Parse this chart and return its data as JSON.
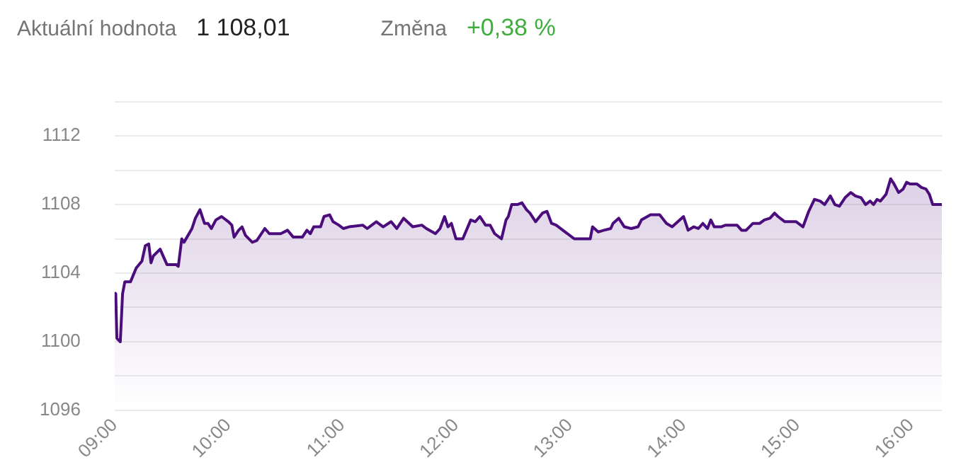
{
  "chart_data": {
    "type": "area",
    "annotations": [
      "Aktuální hodnota",
      "1 108,01",
      "Změna",
      "+0,38 %"
    ],
    "x": [
      9.0,
      9.01,
      9.01,
      9.02,
      9.05,
      9.07,
      9.09,
      9.14,
      9.19,
      9.24,
      9.27,
      9.3,
      9.32,
      9.34,
      9.4,
      9.46,
      9.54,
      9.56,
      9.59,
      9.61,
      9.68,
      9.71,
      9.75,
      9.79,
      9.82,
      9.85,
      9.89,
      9.94,
      10.0,
      10.03,
      10.05,
      10.09,
      10.12,
      10.15,
      10.21,
      10.25,
      10.32,
      10.36,
      10.46,
      10.52,
      10.57,
      10.65,
      10.69,
      10.72,
      10.75,
      10.81,
      10.84,
      10.89,
      10.92,
      10.97,
      11.01,
      11.06,
      11.18,
      11.22,
      11.3,
      11.36,
      11.43,
      11.48,
      11.54,
      11.62,
      11.7,
      11.74,
      11.82,
      11.86,
      11.9,
      11.93,
      11.96,
      12.0,
      12.06,
      12.13,
      12.17,
      12.21,
      12.26,
      12.3,
      12.34,
      12.4,
      12.44,
      12.46,
      12.49,
      12.54,
      12.58,
      12.62,
      12.65,
      12.7,
      12.76,
      12.8,
      12.84,
      12.88,
      12.96,
      13.04,
      13.18,
      13.2,
      13.25,
      13.3,
      13.36,
      13.38,
      13.43,
      13.48,
      13.54,
      13.6,
      13.63,
      13.71,
      13.79,
      13.85,
      13.9,
      13.95,
      14.0,
      14.04,
      14.09,
      14.13,
      14.17,
      14.21,
      14.24,
      14.27,
      14.33,
      14.37,
      14.47,
      14.51,
      14.55,
      14.61,
      14.67,
      14.71,
      14.76,
      14.8,
      14.83,
      14.89,
      14.93,
      14.99,
      15.05,
      15.1,
      15.15,
      15.2,
      15.24,
      15.29,
      15.33,
      15.37,
      15.42,
      15.47,
      15.51,
      15.56,
      15.6,
      15.64,
      15.67,
      15.7,
      15.73,
      15.78,
      15.82,
      15.85,
      15.89,
      15.93,
      15.96,
      15.99,
      16.05,
      16.09,
      16.13,
      16.16,
      16.19,
      16.27
    ],
    "series": [
      {
        "color": "#4b0c7c",
        "values": [
          1102.9,
          1102.2,
          1102.8,
          1100.2,
          1100.0,
          1102.8,
          1103.5,
          1103.5,
          1104.3,
          1104.7,
          1105.6,
          1105.7,
          1104.6,
          1105.0,
          1105.4,
          1104.5,
          1104.5,
          1104.4,
          1106.0,
          1105.8,
          1106.6,
          1107.2,
          1107.7,
          1106.9,
          1106.9,
          1106.6,
          1107.1,
          1107.3,
          1107.0,
          1106.8,
          1106.1,
          1106.5,
          1106.7,
          1106.2,
          1105.8,
          1105.9,
          1106.6,
          1106.3,
          1106.3,
          1106.5,
          1106.1,
          1106.1,
          1106.5,
          1106.3,
          1106.7,
          1106.7,
          1107.3,
          1107.4,
          1107.0,
          1106.8,
          1106.6,
          1106.7,
          1106.8,
          1106.6,
          1107.0,
          1106.7,
          1107.0,
          1106.6,
          1107.2,
          1106.7,
          1106.8,
          1106.6,
          1106.3,
          1106.6,
          1107.3,
          1106.7,
          1106.9,
          1106.0,
          1106.0,
          1107.1,
          1107.0,
          1107.3,
          1106.8,
          1106.8,
          1106.3,
          1106.0,
          1107.1,
          1107.3,
          1108.0,
          1108.0,
          1108.1,
          1107.7,
          1107.5,
          1107.0,
          1107.5,
          1107.6,
          1106.9,
          1106.8,
          1106.4,
          1106.0,
          1106.0,
          1106.7,
          1106.4,
          1106.5,
          1106.6,
          1106.9,
          1107.2,
          1106.7,
          1106.6,
          1106.7,
          1107.1,
          1107.4,
          1107.4,
          1106.9,
          1106.7,
          1107.0,
          1107.3,
          1106.5,
          1106.7,
          1106.6,
          1106.9,
          1106.6,
          1107.1,
          1106.7,
          1106.7,
          1106.8,
          1106.8,
          1106.5,
          1106.5,
          1106.9,
          1106.9,
          1107.1,
          1107.2,
          1107.5,
          1107.3,
          1107.0,
          1107.0,
          1107.0,
          1106.7,
          1107.6,
          1108.3,
          1108.2,
          1108.0,
          1108.5,
          1108.0,
          1107.9,
          1108.4,
          1108.7,
          1108.5,
          1108.4,
          1108.0,
          1108.2,
          1108.0,
          1108.3,
          1108.2,
          1108.6,
          1109.5,
          1109.2,
          1108.7,
          1108.9,
          1109.3,
          1109.2,
          1109.2,
          1109.0,
          1108.9,
          1108.6,
          1108.0,
          1108.0
        ]
      }
    ],
    "xlim": [
      9,
      16.27
    ],
    "xticks": [
      {
        "value": 9,
        "label": "09:00"
      },
      {
        "value": 10,
        "label": "10:00"
      },
      {
        "value": 11,
        "label": "11:00"
      },
      {
        "value": 12,
        "label": "12:00"
      },
      {
        "value": 13,
        "label": "13:00"
      },
      {
        "value": 14,
        "label": "14:00"
      },
      {
        "value": 15,
        "label": "15:00"
      },
      {
        "value": 16,
        "label": "16:00"
      }
    ],
    "ylim": [
      1096,
      1114
    ],
    "yticks": [
      1096,
      {
        "value": 1098,
        "label": null
      },
      1100,
      {
        "value": 1102,
        "label": null
      },
      1104,
      {
        "value": 1106,
        "label": null
      },
      1108,
      {
        "value": 1110,
        "label": null
      },
      1112,
      {
        "value": 1114,
        "label": null
      }
    ],
    "grid": "y",
    "legend": false,
    "marker": "none",
    "line_style": "solid"
  }
}
